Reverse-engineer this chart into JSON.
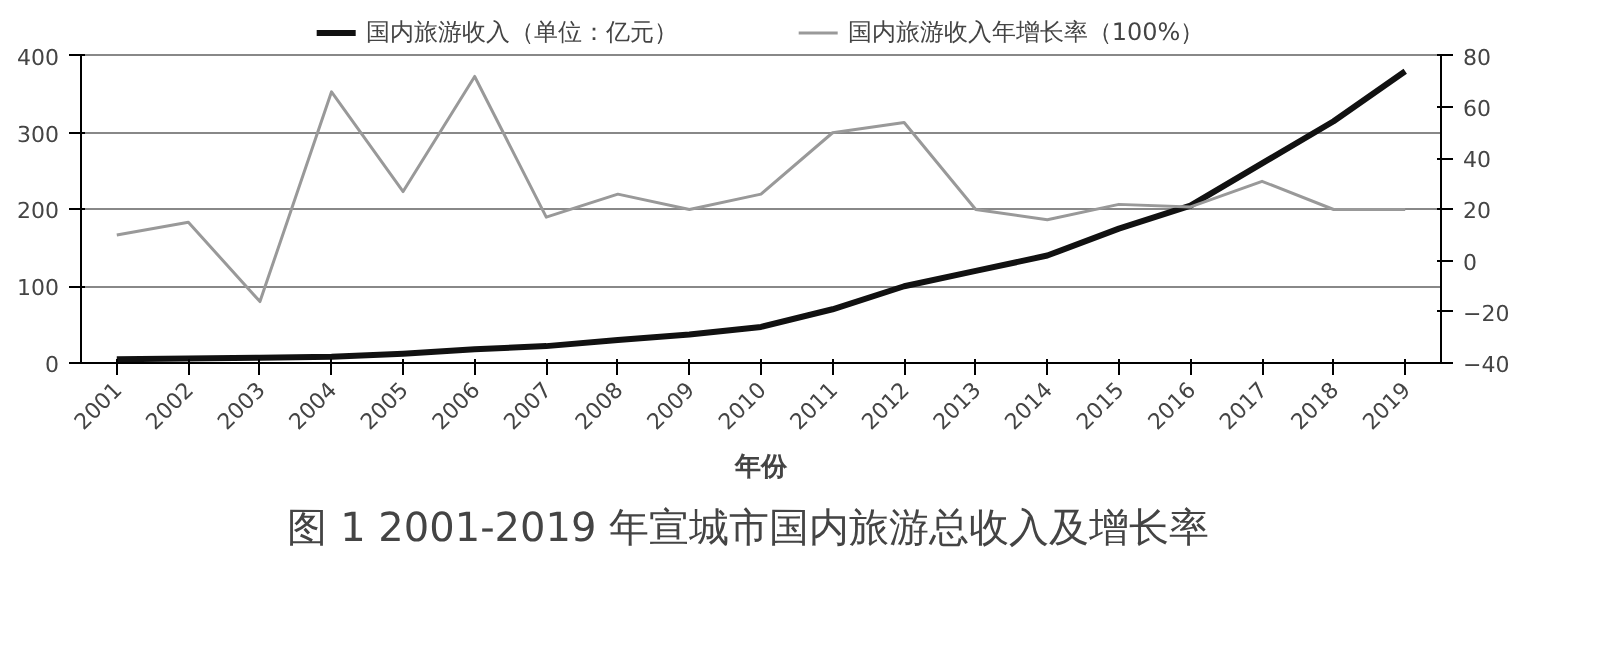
{
  "chart_data": {
    "type": "line",
    "title": "图 1   2001-2019 年宣城市国内旅游总收入及增长率",
    "xlabel": "年份",
    "categories": [
      "2001",
      "2002",
      "2003",
      "2004",
      "2005",
      "2006",
      "2007",
      "2008",
      "2009",
      "2010",
      "2011",
      "2012",
      "2013",
      "2014",
      "2015",
      "2016",
      "2017",
      "2018",
      "2019"
    ],
    "series": [
      {
        "name": "国内旅游收入（单位：亿元）",
        "color": "#111111",
        "values": [
          5,
          6,
          7,
          8,
          12,
          18,
          22,
          30,
          37,
          47,
          70,
          100,
          120,
          140,
          175,
          205,
          260,
          315,
          380
        ]
      },
      {
        "name": "国内旅游收入年增长率（100%）",
        "color": "#999999",
        "axis": "y2",
        "values": [
          10,
          15,
          -16,
          66,
          27,
          72,
          17,
          26,
          20,
          26,
          50,
          54,
          20,
          16,
          22,
          21,
          31,
          20,
          20
        ]
      }
    ],
    "ylim": [
      0,
      400
    ],
    "yticks": [
      0,
      100,
      200,
      300,
      400
    ],
    "y2lim": [
      -40,
      80
    ],
    "y2ticks": [
      -40,
      -20,
      0,
      20,
      40,
      60,
      80
    ],
    "grid": "y",
    "legend": "top",
    "marker": "none",
    "line_style": "solid"
  }
}
